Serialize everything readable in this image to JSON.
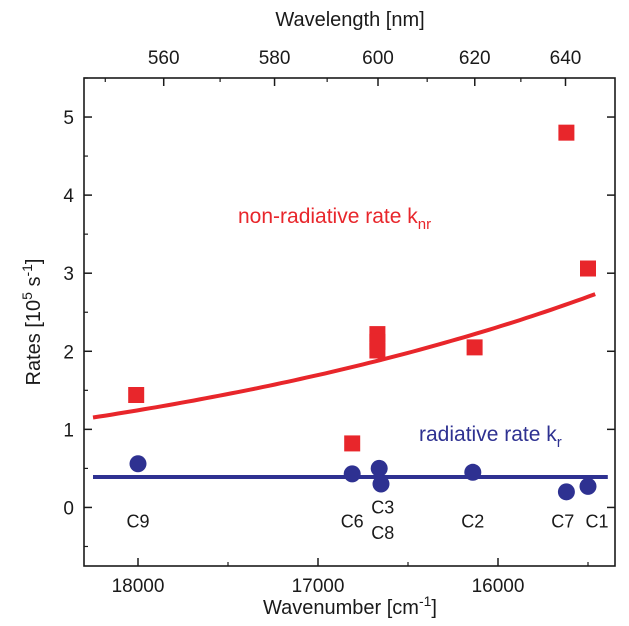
{
  "chart_data": {
    "type": "scatter",
    "top_axis": {
      "label": "Wavelength [nm]",
      "ticks": [
        560,
        580,
        600,
        620,
        640
      ]
    },
    "x_axis": {
      "label_main": "Wavenumber [cm",
      "label_sup": "-1",
      "label_end": "]",
      "range": [
        18300,
        15350
      ],
      "reversed": true,
      "ticks": [
        18000,
        17000,
        16000
      ],
      "tick_labels": [
        "18000",
        "17000",
        "16000"
      ]
    },
    "y_axis": {
      "label_main": "Rates [10",
      "label_sup1": "5",
      "label_mid": " s",
      "label_sup2": "-1",
      "label_end": "]",
      "range": [
        -0.75,
        5.5
      ],
      "ticks": [
        0,
        1,
        2,
        3,
        4,
        5
      ],
      "tick_labels": [
        "0",
        "1",
        "2",
        "3",
        "4",
        "5"
      ]
    },
    "series": [
      {
        "key": "knr",
        "label_main": "non-radiative rate k",
        "label_sub": "nr",
        "color": "#e8262b",
        "marker": "square",
        "points": [
          {
            "x": 18010,
            "y": 1.44
          },
          {
            "x": 16810,
            "y": 0.82
          },
          {
            "x": 16670,
            "y": 2.22
          },
          {
            "x": 16670,
            "y": 2.12
          },
          {
            "x": 16670,
            "y": 2.01
          },
          {
            "x": 16130,
            "y": 2.05
          },
          {
            "x": 15620,
            "y": 4.8
          },
          {
            "x": 15500,
            "y": 3.06
          }
        ],
        "fit": {
          "A": 1.134,
          "B": 0.3096,
          "x0": 18300,
          "x_start": 18250,
          "x_end": 15460
        }
      },
      {
        "key": "kr",
        "label_main": "radiative rate k",
        "label_sub": "r",
        "color": "#2e3191",
        "marker": "circle",
        "points": [
          {
            "x": 18000,
            "y": 0.56
          },
          {
            "x": 16810,
            "y": 0.43
          },
          {
            "x": 16660,
            "y": 0.5
          },
          {
            "x": 16650,
            "y": 0.3
          },
          {
            "x": 16140,
            "y": 0.45
          },
          {
            "x": 15620,
            "y": 0.2
          },
          {
            "x": 15500,
            "y": 0.27
          }
        ],
        "fit": {
          "y": 0.39,
          "x_start": 18250,
          "x_end": 15390
        }
      }
    ],
    "point_labels": [
      {
        "text": "C9",
        "x": 18000,
        "y": -0.18
      },
      {
        "text": "C6",
        "x": 16810,
        "y": -0.18
      },
      {
        "text": "C3",
        "x": 16640,
        "y": 0.0
      },
      {
        "text": "C8",
        "x": 16640,
        "y": -0.33
      },
      {
        "text": "C2",
        "x": 16140,
        "y": -0.18
      },
      {
        "text": "C7",
        "x": 15640,
        "y": -0.18
      },
      {
        "text": "C1",
        "x": 15450,
        "y": -0.18
      }
    ]
  }
}
